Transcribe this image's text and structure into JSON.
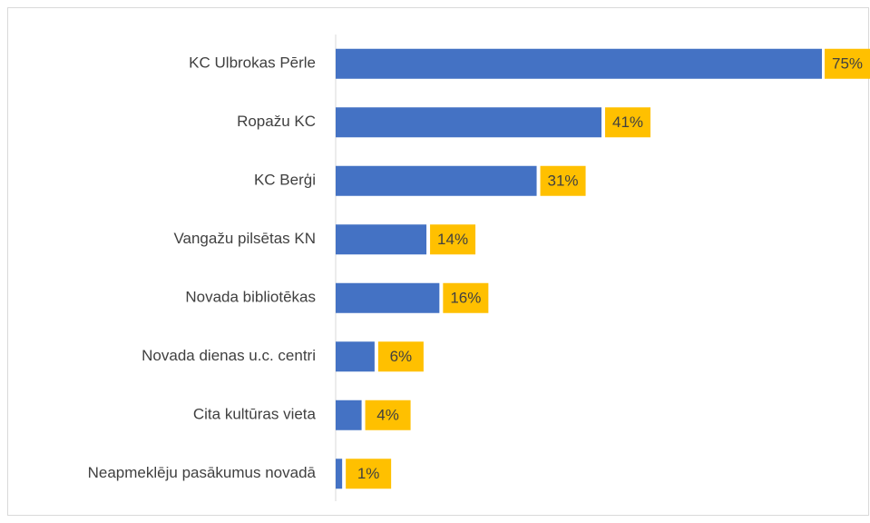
{
  "chart_data": {
    "type": "bar",
    "orientation": "horizontal",
    "categories": [
      "KC Ulbrokas Pērle",
      "Ropažu KC",
      "KC Berģi",
      "Vangažu pilsētas KN",
      "Novada bibliotēkas",
      "Novada dienas u.c. centri",
      "Cita kultūras vieta",
      "Neapmeklēju pasākumus novadā"
    ],
    "values": [
      75,
      41,
      31,
      14,
      16,
      6,
      4,
      1
    ],
    "value_labels": [
      "75%",
      "41%",
      "31%",
      "14%",
      "16%",
      "6%",
      "4%",
      "1%"
    ],
    "color": "#4472c4",
    "label_color": "#ffc000"
  }
}
